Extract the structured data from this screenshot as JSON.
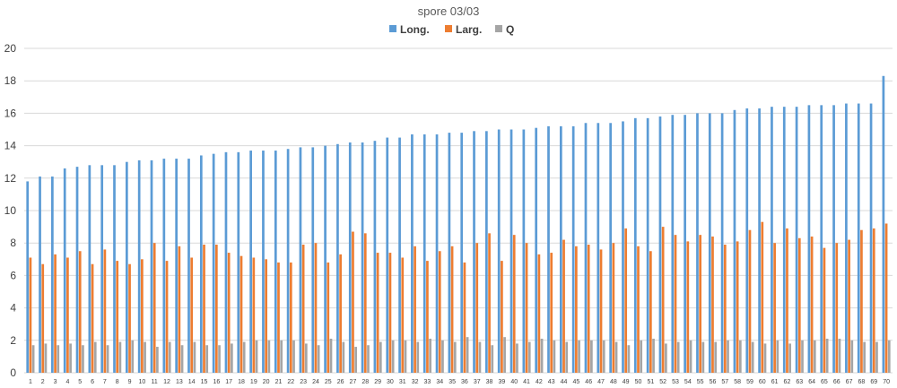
{
  "chart_data": {
    "type": "bar",
    "title": "spore 03/03",
    "xlabel": "",
    "ylabel": "",
    "ylim": [
      0,
      20
    ],
    "yticks": [
      0,
      2,
      4,
      6,
      8,
      10,
      12,
      14,
      16,
      18,
      20
    ],
    "grid": true,
    "legend_position": "top",
    "categories": [
      "1",
      "2",
      "3",
      "4",
      "5",
      "6",
      "7",
      "8",
      "9",
      "10",
      "11",
      "12",
      "13",
      "14",
      "15",
      "16",
      "17",
      "18",
      "19",
      "20",
      "21",
      "22",
      "23",
      "24",
      "25",
      "26",
      "27",
      "28",
      "29",
      "30",
      "31",
      "32",
      "33",
      "34",
      "35",
      "36",
      "37",
      "38",
      "39",
      "40",
      "41",
      "42",
      "43",
      "44",
      "45",
      "46",
      "47",
      "48",
      "49",
      "50",
      "51",
      "52",
      "53",
      "54",
      "55",
      "56",
      "57",
      "58",
      "59",
      "60",
      "61",
      "62",
      "63",
      "64",
      "65",
      "66",
      "67",
      "68",
      "69",
      "70"
    ],
    "series": [
      {
        "name": "Long.",
        "color": "#5B9BD5",
        "values": [
          11.8,
          12.1,
          12.1,
          12.6,
          12.7,
          12.8,
          12.8,
          12.8,
          13.0,
          13.1,
          13.1,
          13.2,
          13.2,
          13.2,
          13.4,
          13.5,
          13.6,
          13.6,
          13.7,
          13.7,
          13.7,
          13.8,
          13.9,
          13.9,
          14.0,
          14.1,
          14.2,
          14.2,
          14.3,
          14.5,
          14.5,
          14.7,
          14.7,
          14.7,
          14.8,
          14.8,
          14.9,
          14.9,
          15.0,
          15.0,
          15.0,
          15.1,
          15.2,
          15.2,
          15.2,
          15.4,
          15.4,
          15.4,
          15.5,
          15.7,
          15.7,
          15.8,
          15.9,
          15.9,
          16.0,
          16.0,
          16.0,
          16.2,
          16.3,
          16.3,
          16.4,
          16.4,
          16.4,
          16.5,
          16.5,
          16.5,
          16.6,
          16.6,
          16.6,
          18.3
        ]
      },
      {
        "name": "Larg.",
        "color": "#ED7D31",
        "values": [
          7.1,
          6.7,
          7.3,
          7.1,
          7.5,
          6.7,
          7.6,
          6.9,
          6.7,
          7.0,
          8.0,
          6.9,
          7.8,
          7.1,
          7.9,
          7.9,
          7.4,
          7.2,
          7.1,
          7.0,
          6.8,
          6.8,
          7.9,
          8.0,
          6.8,
          7.3,
          8.7,
          8.6,
          7.4,
          7.4,
          7.1,
          7.8,
          6.9,
          7.5,
          7.8,
          6.8,
          8.0,
          8.6,
          6.9,
          8.5,
          8.0,
          7.3,
          7.4,
          8.2,
          7.8,
          7.9,
          7.6,
          8.0,
          8.9,
          7.8,
          7.5,
          9.0,
          8.5,
          8.1,
          8.5,
          8.4,
          7.9,
          8.1,
          8.8,
          9.3,
          8.0,
          8.9,
          8.3,
          8.4,
          7.7,
          8.0,
          8.2,
          8.8,
          8.9,
          9.2
        ]
      },
      {
        "name": "Q",
        "color": "#A5A5A5",
        "values": [
          1.7,
          1.8,
          1.7,
          1.8,
          1.7,
          1.9,
          1.7,
          1.9,
          2.0,
          1.9,
          1.6,
          1.9,
          1.7,
          1.9,
          1.7,
          1.7,
          1.8,
          1.9,
          2.0,
          2.0,
          2.0,
          2.0,
          1.8,
          1.7,
          2.1,
          1.9,
          1.6,
          1.7,
          1.9,
          2.0,
          2.0,
          1.9,
          2.1,
          2.0,
          1.9,
          2.2,
          1.9,
          1.7,
          2.2,
          1.8,
          1.9,
          2.1,
          2.0,
          1.9,
          2.0,
          2.0,
          2.0,
          1.9,
          1.7,
          2.0,
          2.1,
          1.8,
          1.9,
          2.0,
          1.9,
          1.9,
          2.0,
          2.0,
          1.9,
          1.8,
          2.0,
          1.8,
          2.0,
          2.0,
          2.1,
          2.1,
          2.0,
          1.9,
          1.9,
          2.0
        ]
      }
    ]
  }
}
